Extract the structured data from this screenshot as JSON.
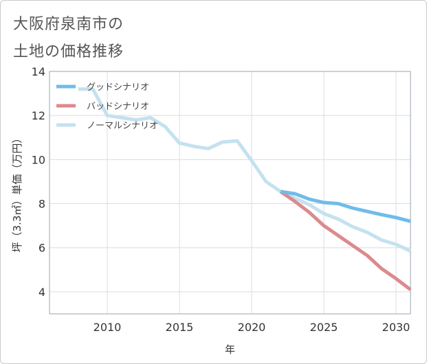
{
  "title_line1": "大阪府泉南市の",
  "title_line2": "土地の価格推移",
  "chart_data": {
    "type": "line",
    "xlabel": "年",
    "ylabel": "坪（3.3㎡）単価（万円）",
    "xlim": [
      2006,
      2031
    ],
    "ylim": [
      3,
      14
    ],
    "xticks": [
      2010,
      2015,
      2020,
      2025,
      2030
    ],
    "yticks": [
      4,
      6,
      8,
      10,
      12,
      14
    ],
    "grid": true,
    "legend_position": "top-left",
    "series": [
      {
        "name": "グッドシナリオ",
        "color": "#6fbcea",
        "x": [
          2022,
          2023,
          2024,
          2025,
          2026,
          2027,
          2028,
          2029,
          2030,
          2031
        ],
        "y": [
          8.55,
          8.45,
          8.2,
          8.05,
          8.0,
          7.8,
          7.65,
          7.5,
          7.37,
          7.2
        ]
      },
      {
        "name": "バッドシナリオ",
        "color": "#dc8a8d",
        "x": [
          2022,
          2023,
          2024,
          2025,
          2026,
          2027,
          2028,
          2029,
          2030,
          2031
        ],
        "y": [
          8.55,
          8.1,
          7.6,
          7.0,
          6.55,
          6.1,
          5.65,
          5.05,
          4.6,
          4.1
        ]
      },
      {
        "name": "ノーマルシナリオ",
        "color": "#c4e1ef",
        "x": [
          2008,
          2009,
          2010,
          2011,
          2012,
          2013,
          2014,
          2015,
          2016,
          2017,
          2018,
          2019,
          2020,
          2021,
          2022,
          2023,
          2024,
          2025,
          2026,
          2027,
          2028,
          2029,
          2030,
          2031
        ],
        "y": [
          13.2,
          13.2,
          12.0,
          11.9,
          11.8,
          11.9,
          11.5,
          10.75,
          10.6,
          10.5,
          10.8,
          10.85,
          9.95,
          9.0,
          8.55,
          8.25,
          7.95,
          7.55,
          7.3,
          6.95,
          6.7,
          6.35,
          6.15,
          5.85
        ]
      }
    ]
  }
}
